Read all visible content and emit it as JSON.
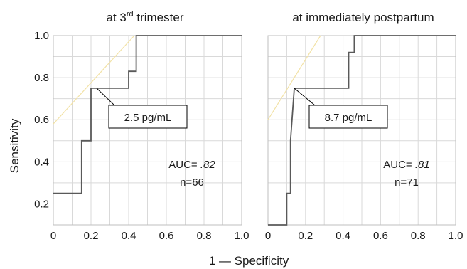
{
  "figure": {
    "xlabel": "1 — Specificity",
    "ylabel": "Sensitivity"
  },
  "chart_data": [
    {
      "type": "line",
      "title": "at 3rd trimester",
      "title_base": "at 3",
      "title_sup": "rd",
      "title_tail": " trimester",
      "xlim": [
        0,
        1.0
      ],
      "ylim": [
        0.1,
        1.0
      ],
      "x_ticks": [
        "0",
        "0.2",
        "0.4",
        "0.6",
        "0.8",
        "1.0"
      ],
      "y_ticks": [
        "0.2",
        "0.4",
        "0.6",
        "0.8",
        "1.0"
      ],
      "grid": true,
      "series": [
        {
          "role": "roc",
          "color": "#595959",
          "x": [
            0,
            0.15,
            0.15,
            0.2,
            0.2,
            0.23,
            0.23,
            0.4,
            0.4,
            0.44,
            0.44,
            1.0
          ],
          "y": [
            0.25,
            0.25,
            0.5,
            0.5,
            0.75,
            0.75,
            0.75,
            0.75,
            0.83,
            0.83,
            1.0,
            1.0
          ]
        },
        {
          "role": "reference",
          "color": "#f2e2a6",
          "x": [
            0,
            0.43
          ],
          "y": [
            0.58,
            1.0
          ]
        }
      ],
      "callout": {
        "label": "2.5 pg/mL",
        "point": [
          0.23,
          0.75
        ]
      },
      "auc_label": "AUC= ",
      "auc_value": ".82",
      "n_label": "n=66"
    },
    {
      "type": "line",
      "title": "at immediately postpartum",
      "title_base": "at immediately postpartum",
      "title_sup": "",
      "title_tail": "",
      "xlim": [
        0,
        1.0
      ],
      "ylim": [
        0.1,
        1.0
      ],
      "x_ticks": [
        "0",
        "0.2",
        "0.4",
        "0.6",
        "0.8",
        "1.0"
      ],
      "y_ticks": [],
      "grid": true,
      "series": [
        {
          "role": "roc",
          "color": "#595959",
          "x": [
            0,
            0.1,
            0.1,
            0.12,
            0.12,
            0.14,
            0.14,
            0.43,
            0.43,
            0.46,
            0.46,
            1.0
          ],
          "y": [
            0.1,
            0.1,
            0.25,
            0.25,
            0.5,
            0.75,
            0.75,
            0.75,
            0.92,
            0.92,
            1.0,
            1.0
          ]
        },
        {
          "role": "reference",
          "color": "#f2e2a6",
          "x": [
            0,
            0.28
          ],
          "y": [
            0.6,
            1.0
          ]
        }
      ],
      "callout": {
        "label": "8.7 pg/mL",
        "point": [
          0.14,
          0.75
        ]
      },
      "auc_label": "AUC= ",
      "auc_value": ".81",
      "n_label": "n=71"
    }
  ]
}
